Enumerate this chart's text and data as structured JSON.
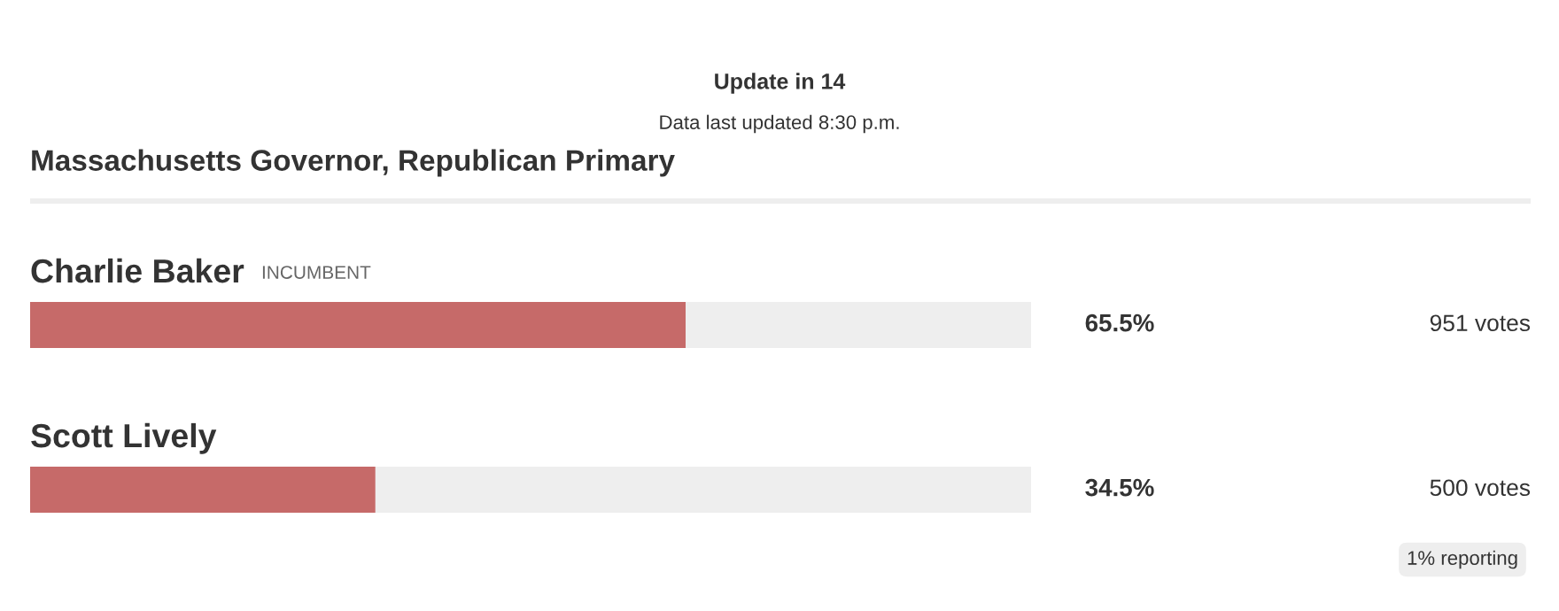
{
  "chart_data": {
    "type": "bar",
    "orientation": "horizontal",
    "stacked": true,
    "title": "Massachusetts Governor, Republican Primary",
    "categories": [
      "Charlie Baker",
      "Scott Lively"
    ],
    "xlim": [
      0,
      100
    ],
    "series": [
      {
        "color": "#c66a69",
        "values": [
          65.5,
          34.5
        ],
        "value_labels": [
          "65.5%",
          "34.5%"
        ]
      },
      {
        "color": "#eeeeee",
        "values": [
          34.5,
          65.5
        ]
      }
    ],
    "annotations": [
      "Update in 14",
      "Data last updated 8:30 p.m.",
      "INCUMBENT",
      "1% reporting",
      "951 votes",
      "500 votes"
    ]
  }
}
